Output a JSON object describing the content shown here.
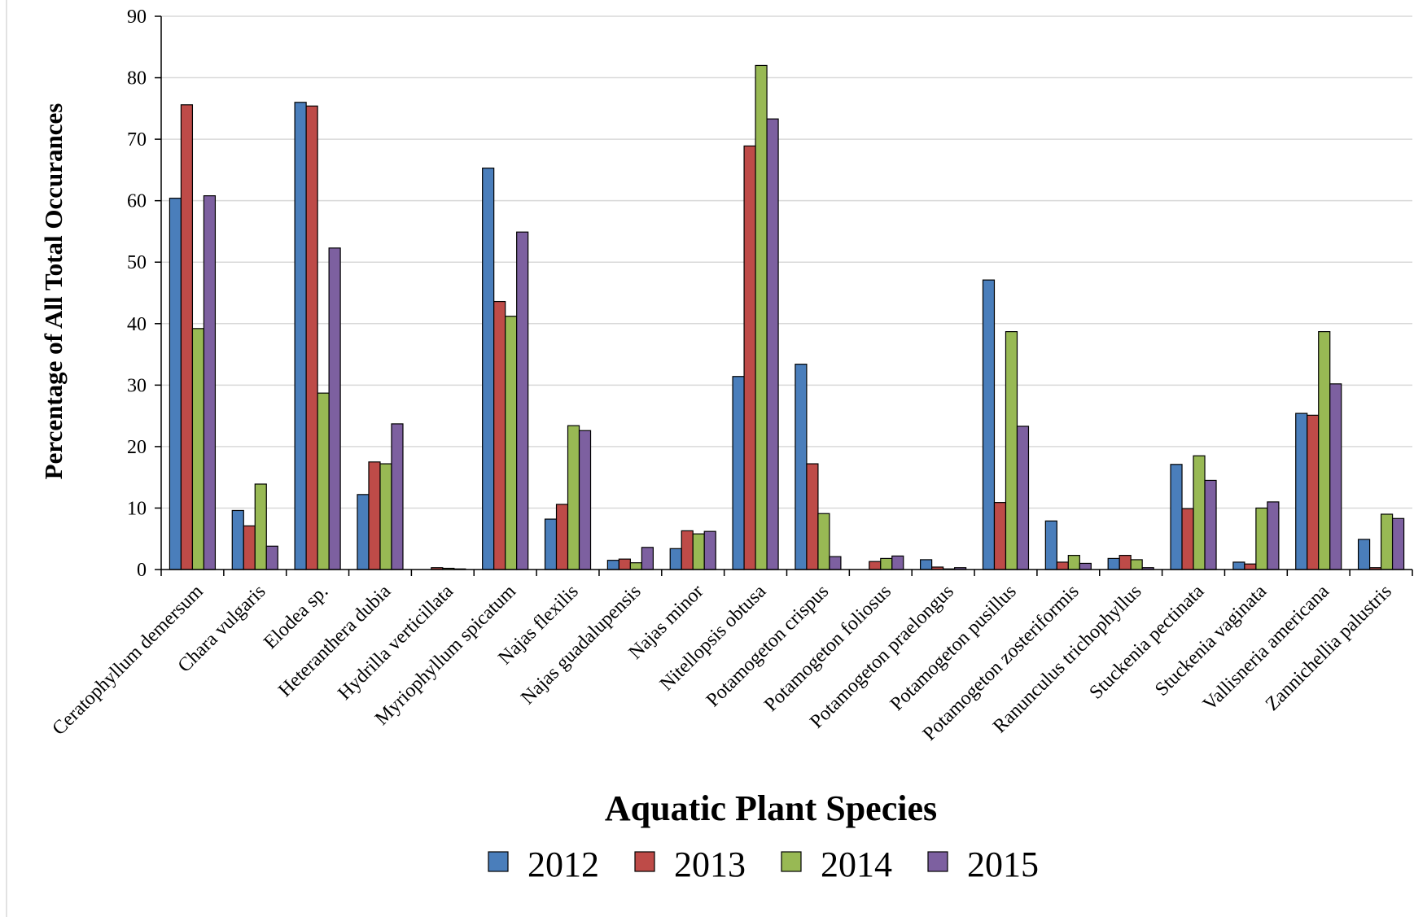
{
  "chart_data": {
    "type": "bar",
    "title": "",
    "xlabel": "Aquatic Plant Species",
    "ylabel": "Percentage of All Total Occurances",
    "ylim": [
      0,
      90
    ],
    "yticks": [
      "0",
      "10",
      "20",
      "30",
      "40",
      "50",
      "60",
      "70",
      "80",
      "90"
    ],
    "grid": "horizontal",
    "legend_position": "bottom",
    "categories": [
      "Ceratophyllum demersum",
      "Chara vulgaris",
      "Elodea sp.",
      "Heteranthera dubia",
      "Hydrilla verticillata",
      "Myriophyllum spicatum",
      "Najas flexilis",
      "Najas guadalupensis",
      "Najas minor",
      "Nitellopsis obtusa",
      "Potamogeton crispus",
      "Potamogeton foliosus",
      "Potamogeton praelongus",
      "Potamogeton pusillus",
      "Potamogeton zosteriformis",
      "Ranunculus trichophyllus",
      "Stuckenia pectinata",
      "Stuckenia vaginata",
      "Vallisneria americana",
      "Zannichellia palustris"
    ],
    "series": [
      {
        "name": "2012",
        "color": "#4a7ebb",
        "values": [
          60.4,
          9.6,
          76.0,
          12.2,
          0.0,
          65.3,
          8.2,
          1.5,
          3.4,
          31.4,
          33.4,
          0.0,
          1.6,
          47.1,
          7.9,
          1.8,
          17.1,
          1.2,
          25.4,
          4.9
        ]
      },
      {
        "name": "2013",
        "color": "#be4b48",
        "values": [
          75.6,
          7.1,
          75.4,
          17.5,
          0.3,
          43.6,
          10.6,
          1.7,
          6.3,
          68.9,
          17.2,
          1.3,
          0.4,
          10.9,
          1.2,
          2.3,
          9.9,
          0.9,
          25.1,
          0.3
        ]
      },
      {
        "name": "2014",
        "color": "#98b954",
        "values": [
          39.2,
          13.9,
          28.7,
          17.2,
          0.2,
          41.2,
          23.4,
          1.1,
          5.8,
          82.0,
          9.1,
          1.8,
          0.1,
          38.7,
          2.3,
          1.6,
          18.5,
          10.0,
          38.7,
          9.0
        ]
      },
      {
        "name": "2015",
        "color": "#7d60a0",
        "values": [
          60.8,
          3.8,
          52.3,
          23.7,
          0.1,
          54.9,
          22.6,
          3.6,
          6.2,
          73.3,
          2.1,
          2.2,
          0.3,
          23.3,
          1.0,
          0.3,
          14.5,
          11.0,
          30.2,
          8.3
        ]
      }
    ]
  }
}
